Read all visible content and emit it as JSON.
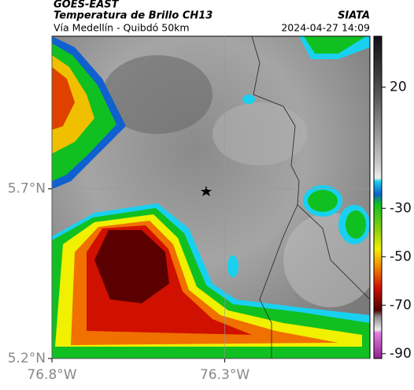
{
  "header": {
    "agency": "GOES-EAST",
    "title": "Temperatura de Brillo CH13",
    "brand": "SIATA",
    "subtitle": "Vía Medellín - Quibdó 50km",
    "timestamp": "2024-04-27 14:09"
  },
  "map": {
    "xlim": [
      -76.8,
      -75.88
    ],
    "ylim": [
      5.2,
      6.15
    ],
    "xticks": [
      {
        "value": -76.8,
        "label": "76.8°W"
      },
      {
        "value": -76.3,
        "label": "76.3°W"
      }
    ],
    "yticks": [
      {
        "value": 5.7,
        "label": "5.7°N"
      },
      {
        "value": 5.2,
        "label": "5.2°N"
      }
    ]
  },
  "colorbar": {
    "lim": [
      -92,
      41
    ],
    "ticks": [
      20,
      -30,
      -50,
      -70,
      -90
    ]
  }
}
